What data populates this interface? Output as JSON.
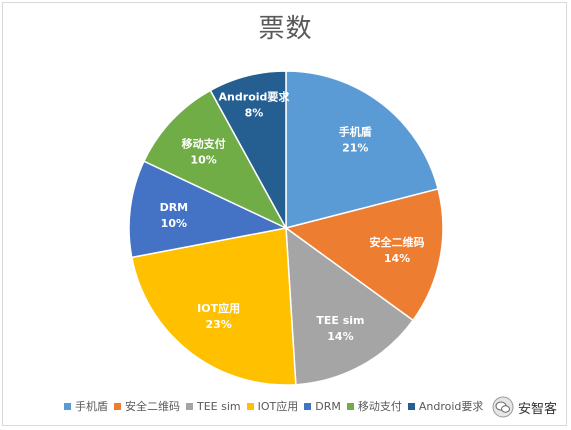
{
  "chart_data": {
    "type": "pie",
    "title": "票数",
    "categories": [
      "手机盾",
      "安全二维码",
      "TEE sim",
      "IOT应用",
      "DRM",
      "移动支付",
      "Android要求"
    ],
    "values": [
      21,
      14,
      14,
      23,
      10,
      10,
      8
    ],
    "value_labels": [
      "21%",
      "14%",
      "14%",
      "23%",
      "10%",
      "10%",
      "8%"
    ],
    "colors": [
      "#5b9bd5",
      "#ed7d31",
      "#a5a5a5",
      "#ffc000",
      "#4472c4",
      "#70ad47",
      "#255e91"
    ],
    "legend_labels": [
      "手机盾",
      "安全二维码",
      "TEE sim",
      "IOT应用",
      "DRM",
      "移动支付",
      "Android要求"
    ],
    "legend_position": "bottom",
    "start": "12 o'clock, clockwise"
  },
  "watermark": {
    "text": "安智客",
    "icon": "wechat-icon"
  }
}
